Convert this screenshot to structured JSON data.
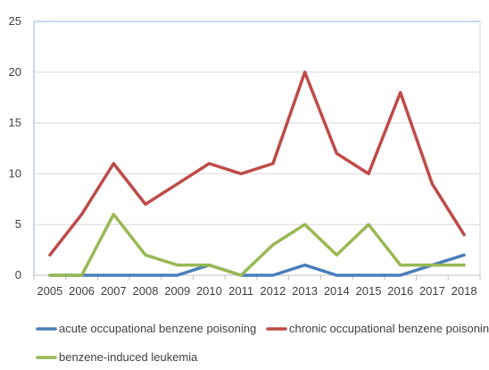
{
  "chart_data": {
    "type": "line",
    "title": "",
    "xlabel": "",
    "ylabel": "",
    "x": [
      "2005",
      "2006",
      "2007",
      "2008",
      "2009",
      "2010",
      "2011",
      "2012",
      "2013",
      "2014",
      "2015",
      "2016",
      "2017",
      "2018"
    ],
    "ylim": [
      0,
      25
    ],
    "yticks": [
      0,
      5,
      10,
      15,
      20,
      25
    ],
    "grid": "horizontal",
    "legend_position": "bottom",
    "series": [
      {
        "name": "acute occupational benzene poisoning",
        "color": "#4a7ebb",
        "values": [
          0,
          0,
          0,
          0,
          0,
          1,
          0,
          0,
          1,
          0,
          0,
          0,
          1,
          2
        ]
      },
      {
        "name": "chronic occupational benzene poisoning",
        "color": "#be4b48",
        "values": [
          2,
          6,
          11,
          7,
          9,
          11,
          10,
          11,
          20,
          12,
          10,
          18,
          9,
          4
        ]
      },
      {
        "name": "benzene-induced leukemia",
        "color": "#98b954",
        "values": [
          0,
          0,
          6,
          2,
          1,
          1,
          0,
          3,
          5,
          2,
          5,
          1,
          1,
          1
        ]
      }
    ]
  }
}
